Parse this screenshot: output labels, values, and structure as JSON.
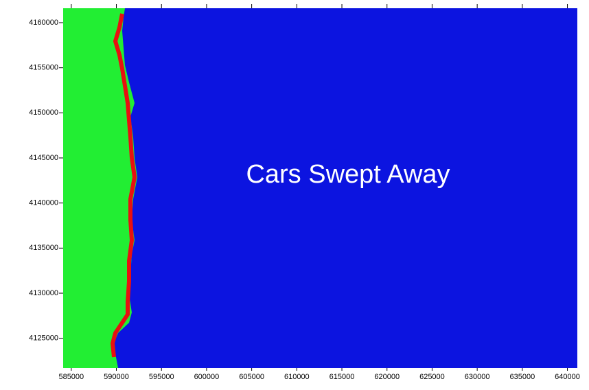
{
  "chart_data": {
    "type": "map",
    "annotation": "Cars Swept Away",
    "xlim": [
      584100,
      641100
    ],
    "ylim": [
      4121700,
      4161600
    ],
    "xticks": [
      585000,
      590000,
      595000,
      600000,
      605000,
      610000,
      615000,
      620000,
      625000,
      630000,
      635000,
      640000
    ],
    "yticks": [
      4125000,
      4130000,
      4135000,
      4140000,
      4145000,
      4150000,
      4155000,
      4160000
    ]
  }
}
